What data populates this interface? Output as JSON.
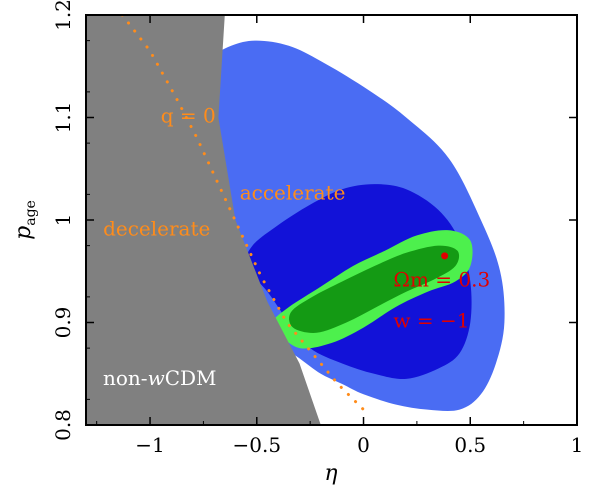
{
  "chart_data": {
    "type": "contour",
    "xlabel": "η",
    "ylabel": "p",
    "ylabel_sub": "age",
    "xlim": [
      -1.3,
      1.0
    ],
    "ylim": [
      0.8,
      1.2
    ],
    "x_ticks": [
      -1,
      -0.5,
      0,
      0.5,
      1
    ],
    "x_tick_labels": [
      "−1",
      "−0.5",
      "0",
      "0.5",
      "1"
    ],
    "y_ticks": [
      0.8,
      0.9,
      1.0,
      1.1,
      1.2
    ],
    "y_tick_labels": [
      "0.8",
      "0.9",
      "1",
      "1.1",
      "1.2"
    ],
    "grid": false,
    "regions": {
      "excluded": {
        "label_prefix": "non-",
        "label_italic": "w",
        "label_suffix": "CDM",
        "color": "#808080",
        "boundary": [
          [
            -1.3,
            1.2
          ],
          [
            -0.65,
            1.2
          ],
          [
            -0.68,
            1.1
          ],
          [
            -0.6,
            1.0
          ],
          [
            -0.45,
            0.92
          ],
          [
            -0.3,
            0.86
          ],
          [
            -0.2,
            0.8
          ],
          [
            -1.3,
            0.8
          ]
        ]
      }
    },
    "contours": [
      {
        "level": "outer",
        "color": "#4a6cf3",
        "polygon": [
          [
            -1.2,
            1.09
          ],
          [
            -1.18,
            1.06
          ],
          [
            -1.12,
            1.03
          ],
          [
            -1.05,
            1.01
          ],
          [
            -0.97,
            0.99
          ],
          [
            -0.9,
            0.975
          ],
          [
            -0.8,
            0.96
          ],
          [
            -0.7,
            0.94
          ],
          [
            -0.6,
            0.92
          ],
          [
            -0.5,
            0.9
          ],
          [
            -0.4,
            0.88
          ],
          [
            -0.3,
            0.865
          ],
          [
            -0.2,
            0.85
          ],
          [
            -0.1,
            0.84
          ],
          [
            0.0,
            0.83
          ],
          [
            0.15,
            0.82
          ],
          [
            0.3,
            0.815
          ],
          [
            0.45,
            0.815
          ],
          [
            0.55,
            0.83
          ],
          [
            0.62,
            0.86
          ],
          [
            0.66,
            0.9
          ],
          [
            0.64,
            0.95
          ],
          [
            0.55,
            1.0
          ],
          [
            0.4,
            1.06
          ],
          [
            0.2,
            1.1
          ],
          [
            0.0,
            1.13
          ],
          [
            -0.2,
            1.155
          ],
          [
            -0.35,
            1.17
          ],
          [
            -0.5,
            1.175
          ],
          [
            -0.62,
            1.17
          ],
          [
            -0.75,
            1.155
          ],
          [
            -0.88,
            1.135
          ],
          [
            -1.0,
            1.12
          ],
          [
            -1.1,
            1.11
          ],
          [
            -1.18,
            1.1
          ]
        ]
      },
      {
        "level": "middle",
        "color": "#1212d8",
        "polygon": [
          [
            -0.55,
            0.955
          ],
          [
            -0.45,
            0.93
          ],
          [
            -0.35,
            0.9
          ],
          [
            -0.25,
            0.875
          ],
          [
            -0.1,
            0.86
          ],
          [
            0.05,
            0.85
          ],
          [
            0.2,
            0.845
          ],
          [
            0.35,
            0.855
          ],
          [
            0.45,
            0.87
          ],
          [
            0.5,
            0.9
          ],
          [
            0.5,
            0.94
          ],
          [
            0.45,
            0.98
          ],
          [
            0.35,
            1.01
          ],
          [
            0.2,
            1.03
          ],
          [
            0.05,
            1.035
          ],
          [
            -0.1,
            1.03
          ],
          [
            -0.25,
            1.015
          ],
          [
            -0.4,
            0.995
          ],
          [
            -0.52,
            0.975
          ]
        ]
      },
      {
        "level": "inner",
        "color": "#4df04d",
        "polygon": [
          [
            -0.4,
            0.89
          ],
          [
            -0.3,
            0.875
          ],
          [
            -0.15,
            0.88
          ],
          [
            0.0,
            0.895
          ],
          [
            0.15,
            0.915
          ],
          [
            0.3,
            0.93
          ],
          [
            0.43,
            0.94
          ],
          [
            0.5,
            0.955
          ],
          [
            0.5,
            0.98
          ],
          [
            0.4,
            0.99
          ],
          [
            0.25,
            0.985
          ],
          [
            0.1,
            0.97
          ],
          [
            -0.05,
            0.955
          ],
          [
            -0.2,
            0.935
          ],
          [
            -0.35,
            0.915
          ],
          [
            -0.43,
            0.9
          ]
        ]
      },
      {
        "level": "core",
        "color": "#149a14",
        "polygon": [
          [
            -0.33,
            0.895
          ],
          [
            -0.22,
            0.89
          ],
          [
            -0.08,
            0.9
          ],
          [
            0.06,
            0.915
          ],
          [
            0.2,
            0.93
          ],
          [
            0.33,
            0.942
          ],
          [
            0.43,
            0.955
          ],
          [
            0.44,
            0.97
          ],
          [
            0.35,
            0.975
          ],
          [
            0.2,
            0.968
          ],
          [
            0.05,
            0.955
          ],
          [
            -0.1,
            0.94
          ],
          [
            -0.24,
            0.925
          ],
          [
            -0.34,
            0.91
          ]
        ]
      }
    ],
    "q_zero_line": {
      "color": "#ff8c1a",
      "style": "dotted",
      "points": [
        [
          -1.13,
          1.2
        ],
        [
          -1.0,
          1.165
        ],
        [
          -0.88,
          1.12
        ],
        [
          -0.78,
          1.08
        ],
        [
          -0.68,
          1.035
        ],
        [
          -0.58,
          0.99
        ],
        [
          -0.48,
          0.945
        ],
        [
          -0.36,
          0.9
        ],
        [
          -0.24,
          0.87
        ],
        [
          -0.12,
          0.84
        ],
        [
          0.0,
          0.815
        ]
      ]
    },
    "best_fit_point": {
      "x": 0.38,
      "y": 0.965,
      "color": "#e00000"
    },
    "annotations": [
      {
        "text": "q = 0",
        "x": -0.95,
        "y": 1.095,
        "color": "#ff8c1a"
      },
      {
        "text": "accelerate",
        "x": -0.58,
        "y": 1.02,
        "color": "#ff8c1a"
      },
      {
        "text": "decelerate",
        "x": -1.22,
        "y": 0.985,
        "color": "#ff8c1a"
      },
      {
        "text": "Ωm = 0.3",
        "x": 0.14,
        "y": 0.935,
        "color": "#e00000"
      },
      {
        "text": "w = −1",
        "x": 0.14,
        "y": 0.895,
        "color": "#e00000"
      }
    ]
  }
}
